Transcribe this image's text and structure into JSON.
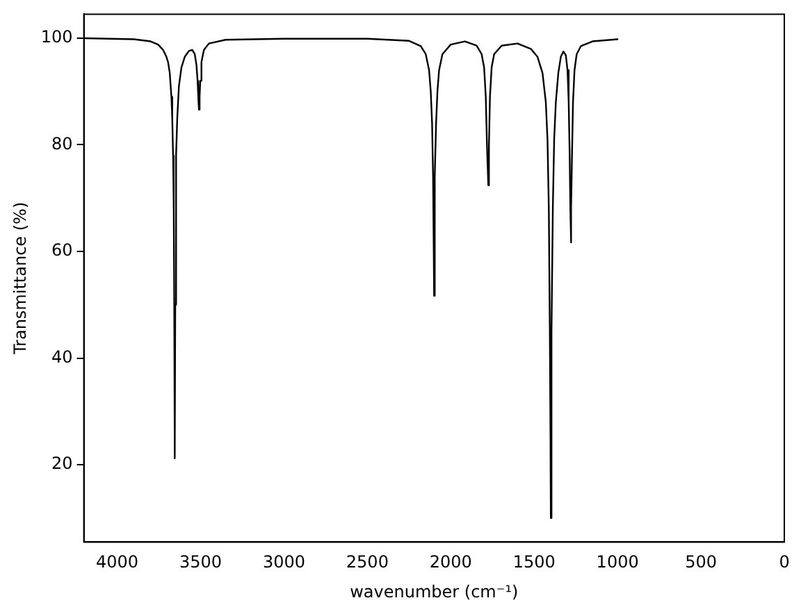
{
  "chart_data": {
    "type": "line",
    "xlabel": "wavenumber (cm⁻¹)",
    "ylabel": "Transmittance (%)",
    "xlim": [
      4200,
      0
    ],
    "xticks": [
      4000,
      3500,
      3000,
      2500,
      2000,
      1500,
      1000,
      500,
      0
    ],
    "ylim": [
      5.5,
      104.5
    ],
    "yticks": [
      20,
      40,
      60,
      80,
      100
    ],
    "grid": false,
    "legend": false,
    "marker": "none",
    "line_style": "solid",
    "series": [
      {
        "color": "#000000",
        "x": [
          4200,
          3900,
          3800,
          3755,
          3725,
          3705,
          3695,
          3685,
          3675,
          3670,
          3665,
          3661,
          3658,
          3655,
          3652,
          3649,
          3645,
          3640,
          3630,
          3615,
          3595,
          3570,
          3550,
          3535,
          3525,
          3518,
          3514,
          3510,
          3506,
          3502,
          3495,
          3480,
          3450,
          3350,
          3000,
          2500,
          2250,
          2180,
          2150,
          2130,
          2120,
          2112,
          2106,
          2102,
          2100,
          2098,
          2094,
          2088,
          2080,
          2070,
          2050,
          2000,
          1915,
          1845,
          1815,
          1800,
          1790,
          1783,
          1775,
          1771,
          1765,
          1755,
          1740,
          1695,
          1600,
          1520,
          1480,
          1450,
          1430,
          1420,
          1412,
          1406,
          1402,
          1400,
          1398,
          1394,
          1388,
          1380,
          1370,
          1355,
          1340,
          1325,
          1310,
          1300,
          1293,
          1287,
          1283,
          1280,
          1277,
          1273,
          1267,
          1258,
          1245,
          1220,
          1150,
          1000
        ],
        "values": [
          100,
          99.8,
          99.4,
          98.8,
          97.8,
          96.5,
          95.5,
          93.5,
          89,
          85,
          78,
          68,
          50,
          21.2,
          50,
          68,
          78,
          85,
          91,
          94.5,
          96.5,
          97.6,
          97.8,
          97,
          95,
          92,
          89,
          86.6,
          89,
          92,
          95.5,
          97.8,
          99,
          99.7,
          99.9,
          99.9,
          99.5,
          98.5,
          97,
          94,
          90,
          84,
          74,
          60,
          51.7,
          60,
          74,
          84,
          90,
          94,
          97,
          98.8,
          99.4,
          98.6,
          97,
          94.5,
          89,
          80,
          72.4,
          80,
          89,
          94.5,
          97,
          98.6,
          99,
          98,
          96.5,
          93.5,
          88,
          81,
          68,
          45,
          25,
          10,
          25,
          45,
          68,
          81,
          88,
          93.5,
          96.5,
          97.5,
          96.8,
          94,
          88,
          78,
          68,
          61.7,
          68,
          78,
          88,
          94,
          97,
          98.5,
          99.4,
          99.8
        ]
      }
    ]
  }
}
